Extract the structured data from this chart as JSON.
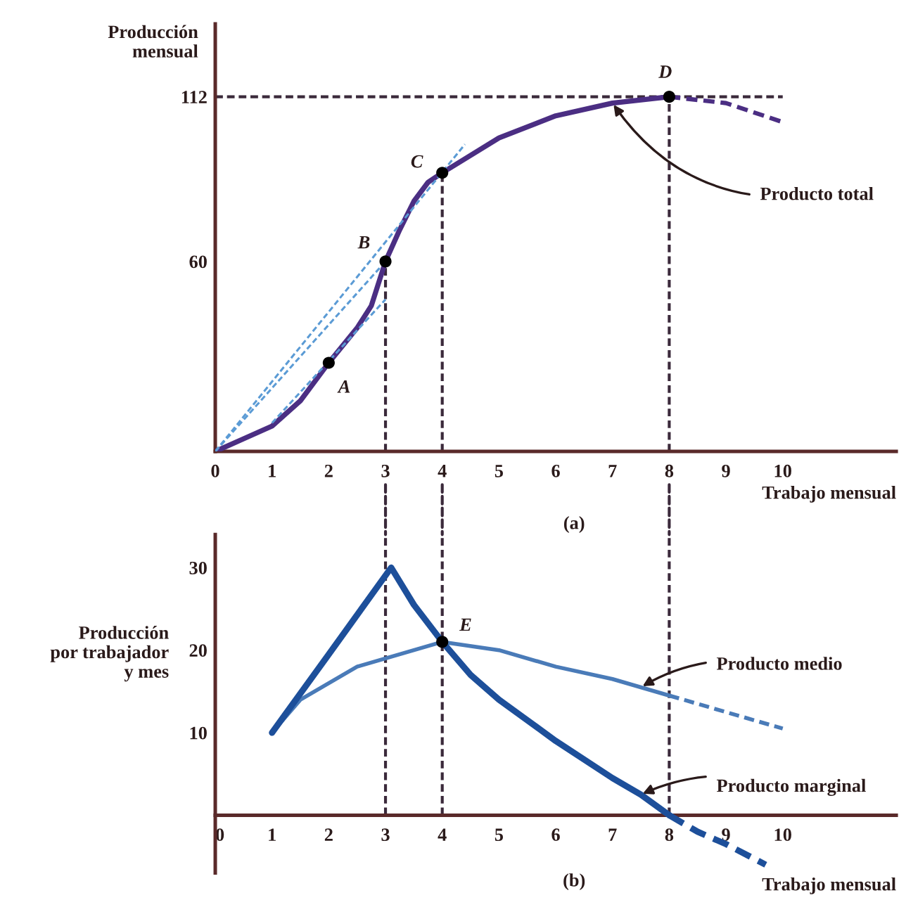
{
  "chart_data": [
    {
      "type": "line",
      "ylabel": "Producción\nmensual",
      "xlabel": "Trabajo mensual",
      "annotations": [
        "(a)",
        {
          "text": "A",
          "x": 2,
          "y": 28
        },
        {
          "text": "B",
          "x": 3,
          "y": 60
        },
        {
          "text": "C",
          "x": 4,
          "y": 88
        },
        {
          "text": "D",
          "x": 8,
          "y": 112
        }
      ],
      "xlim": [
        0,
        12
      ],
      "ylim": [
        0,
        135
      ],
      "xticks": [
        0,
        1,
        2,
        3,
        4,
        5,
        6,
        7,
        8,
        9,
        10
      ],
      "yticks": [
        60,
        112
      ],
      "ref_lines": [
        {
          "axis": "y",
          "value": 112,
          "color": "#3b2a3b",
          "line_style": "dashed"
        },
        {
          "axis": "x",
          "value": 3,
          "color": "#3b2a3b",
          "line_style": "dashed"
        },
        {
          "axis": "x",
          "value": 4,
          "color": "#3b2a3b",
          "line_style": "dashed"
        },
        {
          "axis": "x",
          "value": 8,
          "color": "#3b2a3b",
          "line_style": "dashed"
        }
      ],
      "series": [
        {
          "name": "Producto total",
          "color": "#4b2e83",
          "line_style": "solid",
          "x": [
            0,
            0.5,
            1,
            1.5,
            2,
            2.5,
            2.75,
            3,
            3.25,
            3.5,
            3.75,
            4,
            5,
            6,
            7,
            8
          ],
          "values": [
            0,
            4,
            8,
            16,
            28,
            39,
            46,
            60,
            70,
            79,
            85,
            88,
            99,
            106,
            110,
            112
          ]
        },
        {
          "color": "#4b2e83",
          "line_style": "dashed",
          "x": [
            8,
            8.5,
            9,
            9.5,
            10
          ],
          "values": [
            112,
            111,
            110,
            107,
            104
          ]
        },
        {
          "color": "#5b9bd5",
          "line_style": "dashed",
          "x": [
            0,
            4.4
          ],
          "values": [
            0,
            97
          ]
        },
        {
          "color": "#5b9bd5",
          "line_style": "dashed",
          "x": [
            0,
            3
          ],
          "values": [
            0,
            60
          ]
        },
        {
          "color": "#5b9bd5",
          "line_style": "dashed",
          "x": [
            1,
            3
          ],
          "values": [
            9,
            48
          ]
        },
        {
          "type": "scatter",
          "color": "#000000",
          "marker": "circle",
          "x": [
            2,
            3,
            4,
            8
          ],
          "values": [
            28,
            60,
            88,
            112
          ]
        }
      ]
    },
    {
      "type": "line",
      "ylabel": "Producción\npor trabajador\ny mes",
      "xlabel": "Trabajo mensual",
      "annotations": [
        "(b)",
        {
          "text": "E",
          "x": 4,
          "y": 21
        }
      ],
      "xlim": [
        0,
        12
      ],
      "ylim": [
        -7,
        34
      ],
      "xticks": [
        0,
        1,
        2,
        3,
        4,
        5,
        6,
        7,
        8,
        9,
        10
      ],
      "yticks": [
        10,
        20,
        30
      ],
      "ref_lines": [
        {
          "axis": "x",
          "value": 3,
          "color": "#3b2a3b",
          "line_style": "dashed"
        },
        {
          "axis": "x",
          "value": 4,
          "color": "#3b2a3b",
          "line_style": "dashed"
        },
        {
          "axis": "x",
          "value": 8,
          "color": "#3b2a3b",
          "line_style": "dashed"
        }
      ],
      "series": [
        {
          "name": "Producto medio",
          "color": "#4a7bb8",
          "line_style": "solid",
          "x": [
            1,
            1.5,
            2,
            2.5,
            3,
            3.5,
            4,
            5,
            6,
            7,
            7.5,
            8
          ],
          "values": [
            10,
            14,
            16,
            18,
            19,
            20,
            21,
            20,
            18,
            16.5,
            15.5,
            14.5
          ]
        },
        {
          "color": "#4a7bb8",
          "line_style": "dashed",
          "x": [
            8,
            9,
            10
          ],
          "values": [
            14.5,
            12.5,
            10.5
          ]
        },
        {
          "name": "Producto marginal",
          "color": "#1d4f9a",
          "line_style": "solid",
          "x": [
            1,
            2,
            3.1,
            3.5,
            4,
            4.5,
            5,
            6,
            7,
            7.5,
            8
          ],
          "values": [
            10,
            19.5,
            30,
            25.5,
            21,
            17,
            14,
            9,
            4.5,
            2.5,
            0
          ]
        },
        {
          "color": "#1d4f9a",
          "line_style": "dashed",
          "x": [
            8,
            8.5,
            9,
            9.7
          ],
          "values": [
            0,
            -2,
            -3.5,
            -6
          ]
        },
        {
          "type": "scatter",
          "color": "#000000",
          "marker": "circle",
          "x": [
            4
          ],
          "values": [
            21
          ]
        }
      ]
    }
  ]
}
